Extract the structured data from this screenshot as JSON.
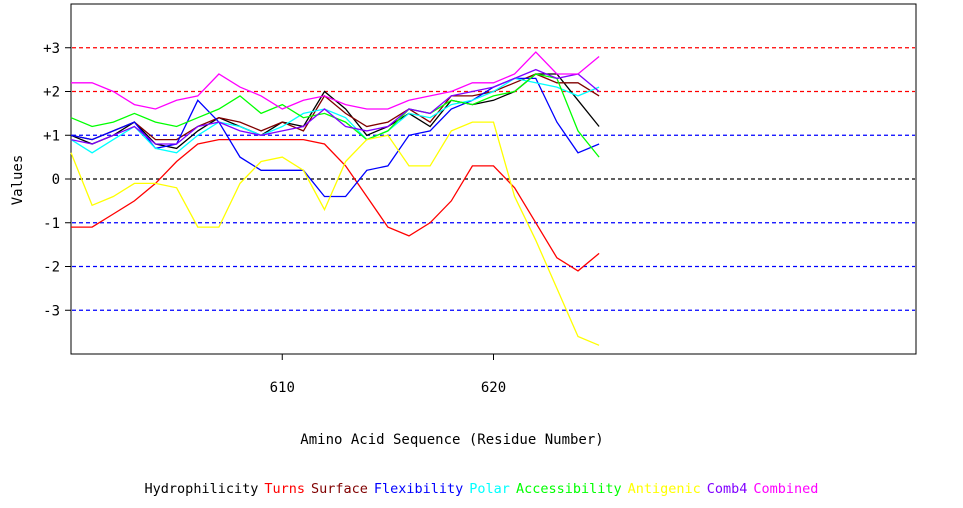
{
  "chart_data": {
    "type": "line",
    "xlabel": "Amino Acid Sequence (Residue Number)",
    "ylabel": "Values",
    "xlim": [
      600,
      640
    ],
    "ylim": [
      -4,
      4
    ],
    "x_ticks": [
      610,
      620
    ],
    "y_ticks": [
      {
        "value": 3,
        "label": "+3"
      },
      {
        "value": 2,
        "label": "+2"
      },
      {
        "value": 1,
        "label": "+1"
      },
      {
        "value": 0,
        "label": "0"
      },
      {
        "value": -1,
        "label": "-1"
      },
      {
        "value": -2,
        "label": "-2"
      },
      {
        "value": -3,
        "label": "-3"
      }
    ],
    "reference_lines": [
      {
        "y": 3,
        "color": "#ff0000"
      },
      {
        "y": 2,
        "color": "#ff0000"
      },
      {
        "y": 1,
        "color": "#0000ff"
      },
      {
        "y": 0,
        "color": "#000000"
      },
      {
        "y": -1,
        "color": "#0000ff"
      },
      {
        "y": -2,
        "color": "#0000ff"
      },
      {
        "y": -3,
        "color": "#0000ff"
      }
    ],
    "x": [
      600,
      601,
      602,
      603,
      604,
      605,
      606,
      607,
      608,
      609,
      610,
      611,
      612,
      613,
      614,
      615,
      616,
      617,
      618,
      619,
      620,
      621,
      622,
      623,
      624,
      625
    ],
    "series": [
      {
        "name": "Hydrophilicity",
        "color": "#000000",
        "values": [
          1.0,
          0.8,
          1.0,
          1.3,
          0.8,
          0.7,
          1.1,
          1.4,
          1.2,
          1.0,
          1.3,
          1.2,
          2.0,
          1.6,
          1.0,
          1.2,
          1.5,
          1.2,
          1.8,
          1.7,
          1.8,
          2.0,
          2.4,
          2.4,
          1.8,
          1.2
        ]
      },
      {
        "name": "Turns",
        "color": "#ff0000",
        "values": [
          -1.1,
          -1.1,
          -0.8,
          -0.5,
          -0.1,
          0.4,
          0.8,
          0.9,
          0.9,
          0.9,
          0.9,
          0.9,
          0.8,
          0.3,
          -0.4,
          -1.1,
          -1.3,
          -1.0,
          -0.5,
          0.3,
          0.3,
          -0.2,
          -1.0,
          -1.8,
          -2.1,
          -1.7
        ]
      },
      {
        "name": "Surface",
        "color": "#800000",
        "values": [
          1.0,
          0.9,
          1.1,
          1.3,
          0.9,
          0.9,
          1.2,
          1.4,
          1.3,
          1.1,
          1.3,
          1.1,
          1.9,
          1.5,
          1.2,
          1.3,
          1.6,
          1.3,
          1.9,
          1.9,
          2.0,
          2.2,
          2.4,
          2.2,
          2.2,
          1.9
        ]
      },
      {
        "name": "Flexibility",
        "color": "#0000ff",
        "values": [
          1.0,
          0.9,
          1.1,
          1.3,
          0.7,
          0.8,
          1.8,
          1.3,
          0.5,
          0.2,
          0.2,
          0.2,
          -0.4,
          -0.4,
          0.2,
          0.3,
          1.0,
          1.1,
          1.6,
          1.8,
          2.1,
          2.3,
          2.3,
          1.3,
          0.6,
          0.8
        ]
      },
      {
        "name": "Polar",
        "color": "#00ffff",
        "values": [
          0.9,
          0.6,
          0.9,
          1.2,
          0.7,
          0.6,
          1.0,
          1.3,
          1.2,
          1.0,
          1.2,
          1.5,
          1.6,
          1.4,
          0.9,
          1.1,
          1.5,
          1.4,
          1.7,
          1.8,
          2.0,
          2.3,
          2.2,
          2.1,
          1.9,
          2.1
        ]
      },
      {
        "name": "Accessibility",
        "color": "#00ff00",
        "values": [
          1.4,
          1.2,
          1.3,
          1.5,
          1.3,
          1.2,
          1.4,
          1.6,
          1.9,
          1.5,
          1.7,
          1.4,
          1.5,
          1.3,
          0.9,
          1.1,
          1.6,
          1.5,
          1.8,
          1.7,
          1.9,
          2.0,
          2.4,
          2.3,
          1.1,
          0.5
        ]
      },
      {
        "name": "Antigenic",
        "color": "#ffff00",
        "values": [
          0.6,
          -0.6,
          -0.4,
          -0.1,
          -0.1,
          -0.2,
          -1.1,
          -1.1,
          -0.1,
          0.4,
          0.5,
          0.2,
          -0.7,
          0.4,
          0.9,
          1.0,
          0.3,
          0.3,
          1.1,
          1.3,
          1.3,
          -0.4,
          -1.4,
          -2.5,
          -3.6,
          -3.8
        ]
      },
      {
        "name": "Comb4",
        "color": "#8000ff",
        "values": [
          0.9,
          0.8,
          1.0,
          1.2,
          0.8,
          0.8,
          1.2,
          1.3,
          1.1,
          1.0,
          1.1,
          1.2,
          1.6,
          1.2,
          1.1,
          1.2,
          1.6,
          1.5,
          1.9,
          2.0,
          2.1,
          2.3,
          2.5,
          2.3,
          2.4,
          2.0
        ]
      },
      {
        "name": "Combined",
        "color": "#ff00ff",
        "values": [
          2.2,
          2.2,
          2.0,
          1.7,
          1.6,
          1.8,
          1.9,
          2.4,
          2.1,
          1.9,
          1.6,
          1.8,
          1.9,
          1.7,
          1.6,
          1.6,
          1.8,
          1.9,
          2.0,
          2.2,
          2.2,
          2.4,
          2.9,
          2.4,
          2.4,
          2.8
        ]
      }
    ]
  },
  "legend": [
    {
      "label": "Hydrophilicity",
      "color": "#000000"
    },
    {
      "label": "Turns",
      "color": "#ff0000"
    },
    {
      "label": "Surface",
      "color": "#800000"
    },
    {
      "label": "Flexibility",
      "color": "#0000ff"
    },
    {
      "label": "Polar",
      "color": "#00ffff"
    },
    {
      "label": "Accessibility",
      "color": "#00ff00"
    },
    {
      "label": "Antigenic",
      "color": "#ffff00"
    },
    {
      "label": "Comb4",
      "color": "#8000ff"
    },
    {
      "label": "Combined",
      "color": "#ff00ff"
    }
  ]
}
